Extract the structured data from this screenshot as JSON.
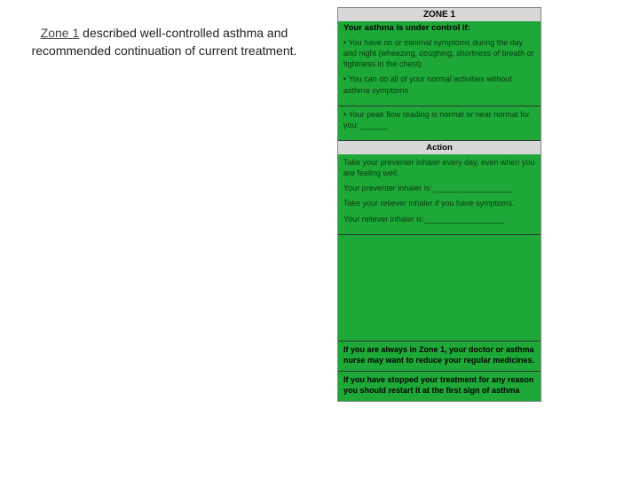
{
  "left_caption": {
    "zone_label": "Zone 1",
    "rest": " described well-controlled asthma and recommended continuation of current treatment."
  },
  "card": {
    "zone_title": "ZONE 1",
    "control_header": "Your asthma is under control if:",
    "control_bullets": [
      "• You have no or minimal symptoms during the day and night (wheezing, coughing, shortness of breath or tightness in the chest)",
      "• You can do all of your normal activities without asthma symptoms"
    ],
    "control_extra": "• Your peak flow reading is normal or near normal for you: ______",
    "action_header": "Action",
    "action_lines": [
      "Take your preventer inhaler every day, even when you are feeling well.",
      "Your preventer inhaler is:__________________",
      "Take your reliever inhaler if you have symptoms.",
      "Your reliever inhaler is:__________________"
    ],
    "note1": "If you are always in Zone 1, your doctor or asthma nurse may want to reduce your regular medicines.",
    "note2": "If you have stopped your treatment for any reason you should restart it at the first sign of asthma"
  },
  "colors": {
    "green": "#1ea838",
    "header_grey": "#d8d8d8",
    "text_dark": "#073a10"
  }
}
